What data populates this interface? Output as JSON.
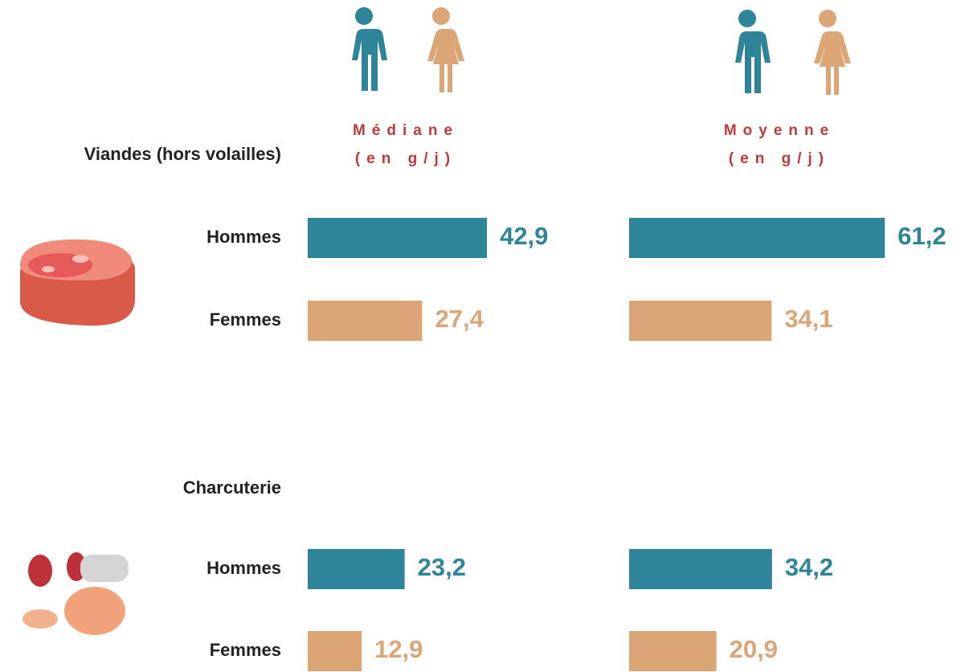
{
  "chart_data": [
    {
      "type": "bar",
      "title": "Médiane",
      "subtitle": "(en g/j)",
      "categories": [
        "Viandes (hors volailles)",
        "Charcuterie"
      ],
      "series": [
        {
          "name": "Hommes",
          "color": "#2e8499",
          "values": [
            42.9,
            23.2
          ],
          "value_labels": [
            "42,9",
            "23,2"
          ]
        },
        {
          "name": "Femmes",
          "color": "#dba575",
          "values": [
            27.4,
            12.9
          ],
          "value_labels": [
            "27,4",
            "12,9"
          ]
        }
      ]
    },
    {
      "type": "bar",
      "title": "Moyenne",
      "subtitle": "(en g/j)",
      "series": [
        {
          "color": "#2e8499",
          "values": [
            61.2,
            34.2
          ],
          "value_labels": [
            "61,2",
            "34,2"
          ]
        },
        {
          "color": "#dba575",
          "values": [
            34.1,
            20.9
          ],
          "value_labels": [
            "34,1",
            "20,9"
          ]
        }
      ]
    }
  ]
}
